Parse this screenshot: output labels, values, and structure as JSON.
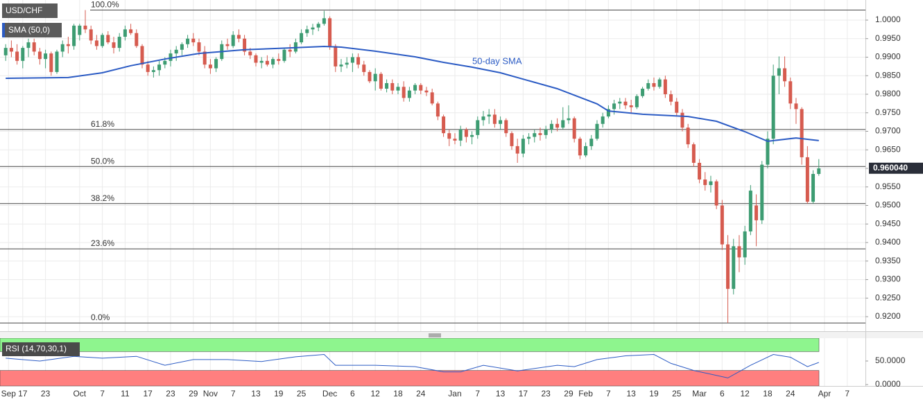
{
  "chart_data": [
    {
      "type": "candlestick",
      "title": "USD/CHF",
      "indicator_label": "SMA (50,0)",
      "up_color": "#3d9c72",
      "down_color": "#d65b4f",
      "grid": true,
      "xlim": [
        -1,
        151.2
      ],
      "ylim": [
        0.91607,
        1.00542
      ],
      "xticks": [
        {
          "value": 0.5,
          "label": "Sep"
        },
        {
          "value": 3,
          "label": "17"
        },
        {
          "value": 7,
          "label": "23"
        },
        {
          "value": 13,
          "label": "Oct"
        },
        {
          "value": 17,
          "label": "7"
        },
        {
          "value": 21,
          "label": "11"
        },
        {
          "value": 25,
          "label": "17"
        },
        {
          "value": 29,
          "label": "23"
        },
        {
          "value": 33,
          "label": "29"
        },
        {
          "value": 36,
          "label": "Nov"
        },
        {
          "value": 40,
          "label": "7"
        },
        {
          "value": 44,
          "label": "13"
        },
        {
          "value": 48,
          "label": "19"
        },
        {
          "value": 52,
          "label": "25"
        },
        {
          "value": 57,
          "label": "Dec"
        },
        {
          "value": 61,
          "label": "6"
        },
        {
          "value": 65,
          "label": "12"
        },
        {
          "value": 69,
          "label": "18"
        },
        {
          "value": 73,
          "label": "24"
        },
        {
          "value": 79,
          "label": "Jan"
        },
        {
          "value": 83,
          "label": "7"
        },
        {
          "value": 87,
          "label": "13"
        },
        {
          "value": 91,
          "label": "17"
        },
        {
          "value": 95,
          "label": "23"
        },
        {
          "value": 99,
          "label": "29"
        },
        {
          "value": 102,
          "label": "Feb"
        },
        {
          "value": 106,
          "label": "7"
        },
        {
          "value": 110,
          "label": "13"
        },
        {
          "value": 114,
          "label": "19"
        },
        {
          "value": 118,
          "label": "25"
        },
        {
          "value": 122,
          "label": "Mar"
        },
        {
          "value": 126,
          "label": "6"
        },
        {
          "value": 130,
          "label": "12"
        },
        {
          "value": 134,
          "label": "18"
        },
        {
          "value": 138,
          "label": "24"
        },
        {
          "value": 144,
          "label": "Apr"
        },
        {
          "value": 148,
          "label": "7"
        }
      ],
      "yticks": [
        {
          "value": 1.0,
          "label": "1.0000"
        },
        {
          "value": 0.995,
          "label": "0.9950"
        },
        {
          "value": 0.99,
          "label": "0.9900"
        },
        {
          "value": 0.985,
          "label": "0.9850"
        },
        {
          "value": 0.98,
          "label": "0.9800"
        },
        {
          "value": 0.975,
          "label": "0.9750"
        },
        {
          "value": 0.97,
          "label": "0.9700"
        },
        {
          "value": 0.965,
          "label": "0.9650"
        },
        {
          "value": 0.96,
          "label": "0.9600"
        },
        {
          "value": 0.955,
          "label": "0.9550"
        },
        {
          "value": 0.95,
          "label": "0.9500"
        },
        {
          "value": 0.945,
          "label": "0.9450"
        },
        {
          "value": 0.94,
          "label": "0.9400"
        },
        {
          "value": 0.935,
          "label": "0.9350"
        },
        {
          "value": 0.93,
          "label": "0.9300"
        },
        {
          "value": 0.925,
          "label": "0.9250"
        },
        {
          "value": 0.92,
          "label": "0.9200"
        }
      ],
      "last_price": {
        "value": 0.96004,
        "label": "0.960040"
      },
      "fib_levels": [
        {
          "label": "100.0%",
          "value": 1.0027
        },
        {
          "label": "61.8%",
          "value": 0.9705
        },
        {
          "label": "50.0%",
          "value": 0.9605
        },
        {
          "label": "38.2%",
          "value": 0.9505
        },
        {
          "label": "23.6%",
          "value": 0.9383
        },
        {
          "label": "0.0%",
          "value": 0.9183
        }
      ],
      "sma": {
        "name": "50-day SMA",
        "color": "#2b5bc4",
        "x": [
          0,
          11,
          17,
          22,
          28,
          34,
          42,
          50,
          56,
          59,
          65,
          72,
          77,
          82,
          87,
          97,
          104,
          106,
          112,
          120,
          125,
          130,
          134,
          139,
          143
        ],
        "values": [
          0.9843,
          0.9845,
          0.9858,
          0.9877,
          0.9895,
          0.991,
          0.992,
          0.9925,
          0.9929,
          0.9927,
          0.9916,
          0.9901,
          0.9886,
          0.9873,
          0.9858,
          0.9815,
          0.9774,
          0.9755,
          0.9746,
          0.974,
          0.9727,
          0.9699,
          0.9673,
          0.9682,
          0.9675
        ]
      },
      "ohlc": [
        [
          0.9905,
          0.9935,
          0.989,
          0.9925
        ],
        [
          0.9925,
          0.9945,
          0.99,
          0.9915
        ],
        [
          0.9915,
          0.9935,
          0.988,
          0.989
        ],
        [
          0.989,
          0.993,
          0.987,
          0.9925
        ],
        [
          0.9925,
          0.995,
          0.99,
          0.994
        ],
        [
          0.994,
          0.995,
          0.9905,
          0.9915
        ],
        [
          0.9915,
          0.9925,
          0.988,
          0.9895
        ],
        [
          0.9895,
          0.992,
          0.987,
          0.991
        ],
        [
          0.991,
          0.9915,
          0.985,
          0.986
        ],
        [
          0.986,
          0.992,
          0.9855,
          0.9915
        ],
        [
          0.9915,
          0.9945,
          0.99,
          0.9935
        ],
        [
          0.9935,
          0.9955,
          0.991,
          0.993
        ],
        [
          0.993,
          0.999,
          0.992,
          0.9985
        ],
        [
          0.996,
          0.999,
          0.9945,
          0.9985
        ],
        [
          0.9985,
          1.0027,
          0.9965,
          0.9975
        ],
        [
          0.9975,
          0.9985,
          0.9935,
          0.9945
        ],
        [
          0.9945,
          0.996,
          0.992,
          0.993
        ],
        [
          0.993,
          0.9965,
          0.9925,
          0.996
        ],
        [
          0.996,
          0.997,
          0.9935,
          0.994
        ],
        [
          0.994,
          0.9955,
          0.991,
          0.9925
        ],
        [
          0.9925,
          0.9965,
          0.9915,
          0.9955
        ],
        [
          0.9955,
          0.9985,
          0.9945,
          0.9975
        ],
        [
          0.9975,
          0.999,
          0.996,
          0.9965
        ],
        [
          0.9965,
          0.9975,
          0.9925,
          0.993
        ],
        [
          0.993,
          0.9935,
          0.987,
          0.988
        ],
        [
          0.988,
          0.989,
          0.985,
          0.986
        ],
        [
          0.986,
          0.9875,
          0.9845,
          0.9865
        ],
        [
          0.9865,
          0.989,
          0.985,
          0.988
        ],
        [
          0.988,
          0.99,
          0.987,
          0.989
        ],
        [
          0.989,
          0.992,
          0.9875,
          0.991
        ],
        [
          0.991,
          0.993,
          0.989,
          0.992
        ],
        [
          0.992,
          0.994,
          0.9905,
          0.9935
        ],
        [
          0.9935,
          0.996,
          0.9925,
          0.995
        ],
        [
          0.995,
          0.9965,
          0.993,
          0.994
        ],
        [
          0.994,
          0.995,
          0.9905,
          0.9915
        ],
        [
          0.9915,
          0.993,
          0.987,
          0.988
        ],
        [
          0.988,
          0.9895,
          0.9855,
          0.987
        ],
        [
          0.987,
          0.99,
          0.986,
          0.9895
        ],
        [
          0.9895,
          0.9945,
          0.989,
          0.9935
        ],
        [
          0.9935,
          0.995,
          0.992,
          0.993
        ],
        [
          0.993,
          0.997,
          0.9925,
          0.996
        ],
        [
          0.996,
          0.9975,
          0.994,
          0.995
        ],
        [
          0.995,
          0.996,
          0.9905,
          0.9915
        ],
        [
          0.9915,
          0.9925,
          0.9895,
          0.9905
        ],
        [
          0.9905,
          0.991,
          0.9875,
          0.9885
        ],
        [
          0.9885,
          0.99,
          0.987,
          0.989
        ],
        [
          0.989,
          0.9905,
          0.9875,
          0.988
        ],
        [
          0.988,
          0.99,
          0.987,
          0.9895
        ],
        [
          0.9895,
          0.991,
          0.988,
          0.989
        ],
        [
          0.989,
          0.9925,
          0.9885,
          0.992
        ],
        [
          0.992,
          0.9935,
          0.99,
          0.9915
        ],
        [
          0.9915,
          0.995,
          0.991,
          0.994
        ],
        [
          0.994,
          0.9975,
          0.9935,
          0.9965
        ],
        [
          0.9965,
          0.9985,
          0.9955,
          0.9975
        ],
        [
          0.9975,
          0.999,
          0.996,
          0.998
        ],
        [
          0.998,
          0.9995,
          0.997,
          0.999
        ],
        [
          0.999,
          1.0025,
          0.9985,
          1.0005
        ],
        [
          1.0005,
          1.001,
          0.992,
          0.993
        ],
        [
          0.993,
          0.9935,
          0.986,
          0.9875
        ],
        [
          0.9875,
          0.9895,
          0.986,
          0.988
        ],
        [
          0.988,
          0.99,
          0.987,
          0.9885
        ],
        [
          0.9885,
          0.991,
          0.986,
          0.99
        ],
        [
          0.99,
          0.991,
          0.987,
          0.988
        ],
        [
          0.988,
          0.989,
          0.985,
          0.986
        ],
        [
          0.986,
          0.9865,
          0.983,
          0.9835
        ],
        [
          0.9835,
          0.987,
          0.981,
          0.9855
        ],
        [
          0.9855,
          0.986,
          0.981,
          0.9815
        ],
        [
          0.9815,
          0.984,
          0.9805,
          0.983
        ],
        [
          0.983,
          0.984,
          0.98,
          0.981
        ],
        [
          0.981,
          0.983,
          0.98,
          0.982
        ],
        [
          0.982,
          0.9835,
          0.978,
          0.979
        ],
        [
          0.979,
          0.982,
          0.978,
          0.981
        ],
        [
          0.981,
          0.983,
          0.98,
          0.9825
        ],
        [
          0.9825,
          0.983,
          0.98,
          0.981
        ],
        [
          0.981,
          0.982,
          0.9795,
          0.9805
        ],
        [
          0.9805,
          0.9815,
          0.977,
          0.9775
        ],
        [
          0.9775,
          0.978,
          0.973,
          0.974
        ],
        [
          0.974,
          0.9745,
          0.9685,
          0.9695
        ],
        [
          0.9695,
          0.9705,
          0.966,
          0.968
        ],
        [
          0.968,
          0.9695,
          0.9665,
          0.9675
        ],
        [
          0.9675,
          0.9715,
          0.966,
          0.9705
        ],
        [
          0.9705,
          0.971,
          0.967,
          0.9685
        ],
        [
          0.9685,
          0.97,
          0.9665,
          0.969
        ],
        [
          0.969,
          0.974,
          0.968,
          0.973
        ],
        [
          0.973,
          0.9755,
          0.9715,
          0.974
        ],
        [
          0.974,
          0.976,
          0.972,
          0.9745
        ],
        [
          0.9745,
          0.976,
          0.971,
          0.972
        ],
        [
          0.972,
          0.974,
          0.9705,
          0.973
        ],
        [
          0.973,
          0.9735,
          0.9685,
          0.9695
        ],
        [
          0.9695,
          0.97,
          0.965,
          0.966
        ],
        [
          0.966,
          0.968,
          0.9615,
          0.964
        ],
        [
          0.964,
          0.969,
          0.963,
          0.968
        ],
        [
          0.968,
          0.9695,
          0.9665,
          0.9685
        ],
        [
          0.9685,
          0.9705,
          0.967,
          0.9695
        ],
        [
          0.9695,
          0.971,
          0.9675,
          0.969
        ],
        [
          0.969,
          0.9715,
          0.968,
          0.9705
        ],
        [
          0.9705,
          0.973,
          0.9695,
          0.972
        ],
        [
          0.972,
          0.9735,
          0.97,
          0.971
        ],
        [
          0.971,
          0.9765,
          0.9705,
          0.973
        ],
        [
          0.973,
          0.977,
          0.972,
          0.9735
        ],
        [
          0.9735,
          0.974,
          0.967,
          0.968
        ],
        [
          0.968,
          0.9685,
          0.9625,
          0.9635
        ],
        [
          0.9635,
          0.967,
          0.963,
          0.966
        ],
        [
          0.966,
          0.969,
          0.965,
          0.968
        ],
        [
          0.968,
          0.973,
          0.9675,
          0.972
        ],
        [
          0.972,
          0.975,
          0.971,
          0.974
        ],
        [
          0.974,
          0.977,
          0.9735,
          0.976
        ],
        [
          0.976,
          0.9785,
          0.9745,
          0.9775
        ],
        [
          0.9775,
          0.979,
          0.976,
          0.978
        ],
        [
          0.978,
          0.979,
          0.976,
          0.977
        ],
        [
          0.977,
          0.9785,
          0.975,
          0.9765
        ],
        [
          0.9765,
          0.98,
          0.976,
          0.9795
        ],
        [
          0.9795,
          0.982,
          0.979,
          0.9815
        ],
        [
          0.9815,
          0.984,
          0.981,
          0.983
        ],
        [
          0.983,
          0.9845,
          0.981,
          0.982
        ],
        [
          0.982,
          0.9845,
          0.9815,
          0.984
        ],
        [
          0.984,
          0.985,
          0.979,
          0.98
        ],
        [
          0.98,
          0.981,
          0.977,
          0.978
        ],
        [
          0.978,
          0.979,
          0.974,
          0.975
        ],
        [
          0.975,
          0.976,
          0.97,
          0.971
        ],
        [
          0.971,
          0.972,
          0.9655,
          0.9665
        ],
        [
          0.9665,
          0.967,
          0.9605,
          0.9615
        ],
        [
          0.9615,
          0.9625,
          0.956,
          0.957
        ],
        [
          0.957,
          0.959,
          0.954,
          0.9555
        ],
        [
          0.9555,
          0.958,
          0.9535,
          0.9565
        ],
        [
          0.9565,
          0.957,
          0.949,
          0.95
        ],
        [
          0.95,
          0.9515,
          0.938,
          0.9395
        ],
        [
          0.9395,
          0.942,
          0.9183,
          0.9275
        ],
        [
          0.9275,
          0.941,
          0.926,
          0.939
        ],
        [
          0.939,
          0.942,
          0.932,
          0.936
        ],
        [
          0.936,
          0.9445,
          0.934,
          0.943
        ],
        [
          0.943,
          0.9555,
          0.942,
          0.954
        ],
        [
          0.95,
          0.953,
          0.939,
          0.946
        ],
        [
          0.946,
          0.962,
          0.945,
          0.961
        ],
        [
          0.961,
          0.97,
          0.96,
          0.968
        ],
        [
          0.968,
          0.988,
          0.9665,
          0.985
        ],
        [
          0.985,
          0.9902,
          0.98,
          0.987
        ],
        [
          0.987,
          0.9902,
          0.982,
          0.9835
        ],
        [
          0.9835,
          0.9845,
          0.976,
          0.9775
        ],
        [
          0.9775,
          0.979,
          0.972,
          0.976
        ],
        [
          0.976,
          0.9765,
          0.961,
          0.963
        ],
        [
          0.963,
          0.966,
          0.9505,
          0.951
        ],
        [
          0.951,
          0.9595,
          0.9505,
          0.9585
        ],
        [
          0.9585,
          0.9625,
          0.958,
          0.96
        ]
      ]
    },
    {
      "type": "line",
      "title": "RSI (14,70,30,1)",
      "color": "#2b5bc4",
      "ylim": [
        -3,
        98.5
      ],
      "yticks": [
        {
          "value": 50,
          "label": "50.0000"
        },
        {
          "value": 0,
          "label": "0.0000"
        }
      ],
      "overbought": 70,
      "oversold": 30,
      "overbought_color": "#8ef58e",
      "oversold_color": "#ff7f7f",
      "x": [
        0,
        6,
        12,
        17,
        23,
        28,
        33,
        39,
        45,
        51,
        56,
        58,
        65,
        72,
        77,
        80,
        84,
        90,
        97,
        100,
        104,
        109,
        114,
        117,
        121,
        127,
        131,
        135,
        138,
        141,
        143
      ],
      "values": [
        56,
        50,
        60,
        56,
        60,
        41,
        53,
        53,
        49,
        59,
        64,
        41,
        41,
        38,
        27,
        27,
        41,
        29,
        41,
        38,
        53,
        61,
        64,
        45,
        30,
        14,
        41,
        64,
        58,
        38,
        47
      ]
    }
  ]
}
